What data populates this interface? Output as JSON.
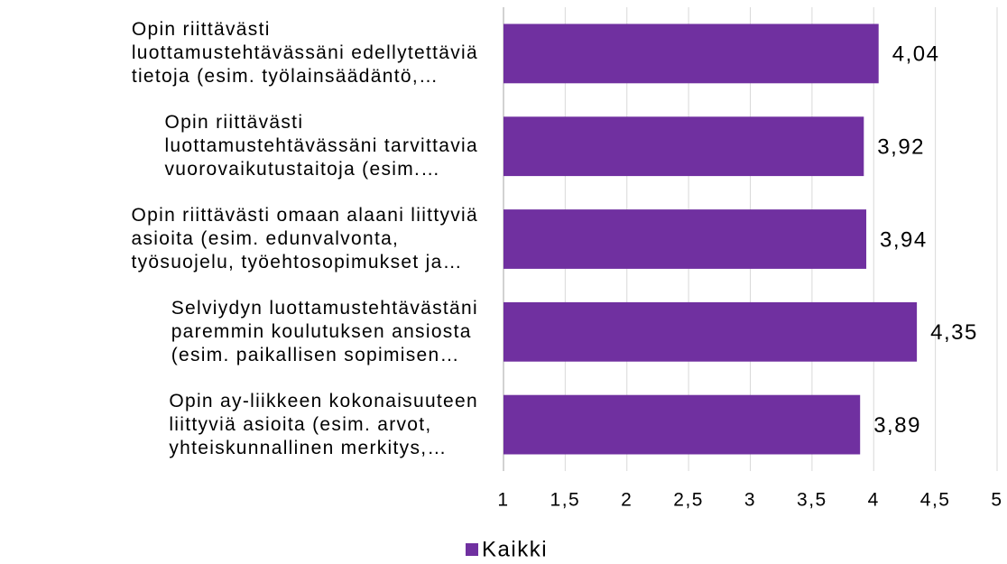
{
  "chart_data": {
    "type": "bar",
    "orientation": "horizontal",
    "categories": [
      "Opin riittävästi\nluottamustehtävässäni edellytettäviä\ntietoja (esim. työlainsäädäntö,…",
      "Opin riittävästi\nluottamustehtävässäni tarvittavia\nvuorovaikutustaitoja (esim.…",
      "Opin riittävästi omaan alaani liittyviä\nasioita (esim. edunvalvonta,\ntyösuojelu, työehtosopimukset ja…",
      "Selviydyn luottamustehtävästäni\nparemmin koulutuksen ansiosta\n(esim. paikallisen sopimisen…",
      "Opin ay-liikkeen kokonaisuuteen\nliittyviä asioita  (esim. arvot,\nyhteiskunnallinen merkitys,…"
    ],
    "series": [
      {
        "name": "Kaikki",
        "color": "#7030a0",
        "values": [
          4.04,
          3.92,
          3.94,
          4.35,
          3.89
        ],
        "value_labels": [
          "4,04",
          "3,92",
          "3,94",
          "4,35",
          "3,89"
        ]
      }
    ],
    "xlim": [
      1,
      5
    ],
    "xticks": [
      1,
      {
        "value": 1.5,
        "label": "1,5"
      },
      2,
      {
        "value": 2.5,
        "label": "2,5"
      },
      3,
      {
        "value": 3.5,
        "label": "3,5"
      },
      4,
      {
        "value": 4.5,
        "label": "4,5"
      },
      5
    ],
    "grid": true,
    "legend": "bottom"
  }
}
